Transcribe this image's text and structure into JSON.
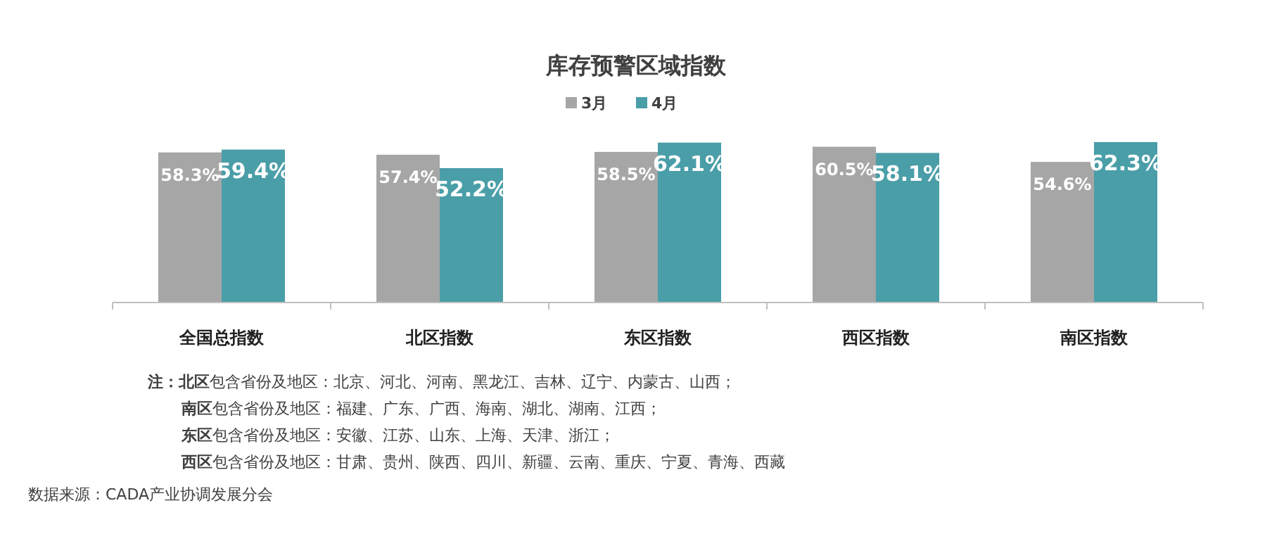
{
  "chart_data": {
    "type": "bar",
    "title": "库存预警区域指数",
    "categories": [
      "全国总指数",
      "北区指数",
      "东区指数",
      "西区指数",
      "南区指数"
    ],
    "series": [
      {
        "name": "3月",
        "color": "#a6a6a6",
        "values": [
          58.3,
          57.4,
          58.5,
          60.5,
          54.6
        ],
        "value_labels": [
          "58.3%",
          "57.4%",
          "58.5%",
          "60.5%",
          "54.6%"
        ]
      },
      {
        "name": "4月",
        "color": "#4a9ea8",
        "values": [
          59.4,
          52.2,
          62.1,
          58.1,
          62.3
        ],
        "value_labels": [
          "59.4%",
          "52.2%",
          "62.1%",
          "58.1%",
          "62.3%"
        ]
      }
    ],
    "legend": "top",
    "annotations": [
      "**注：北区**包含省份及地区：北京、河北、河南、黑龙江、吉林、辽宁、内蒙古、山西；",
      "**南区**包含省份及地区：福建、广东、广西、海南、湖北、湖南、江西；",
      "**东区**包含省份及地区：安徽、江苏、山东、上海、天津、浙江；",
      "**西区**包含省份及地区：甘肃、贵州、陕西、四川、新疆、云南、重庆、宁夏、青海、西藏",
      "数据来源：CADA产业协调发展分会"
    ]
  }
}
